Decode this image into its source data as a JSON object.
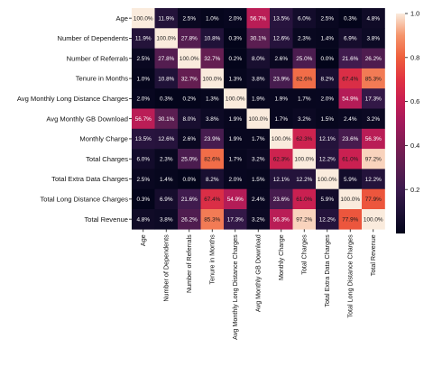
{
  "chart_data": {
    "type": "heatmap",
    "title": "",
    "xlabel": "",
    "ylabel": "",
    "labels": [
      "Age",
      "Number of Dependents",
      "Number of Referrals",
      "Tenure in Months",
      "Avg Monthly Long Distance Charges",
      "Avg Monthly GB Download",
      "Monthly Charge",
      "Total Charges",
      "Total Extra Data Charges",
      "Total Long Distance Charges",
      "Total Revenue"
    ],
    "values": [
      [
        100.0,
        11.9,
        2.5,
        1.0,
        2.0,
        56.7,
        13.5,
        6.0,
        2.5,
        0.3,
        4.8
      ],
      [
        11.9,
        100.0,
        27.8,
        10.8,
        0.3,
        30.1,
        12.6,
        2.3,
        1.4,
        6.9,
        3.8
      ],
      [
        2.5,
        27.8,
        100.0,
        32.7,
        0.2,
        8.0,
        2.6,
        25.0,
        0.0,
        21.6,
        26.2
      ],
      [
        1.0,
        10.8,
        32.7,
        100.0,
        1.3,
        3.8,
        23.9,
        82.6,
        8.2,
        67.4,
        85.3
      ],
      [
        2.0,
        0.3,
        0.2,
        1.3,
        100.0,
        1.9,
        1.9,
        1.7,
        2.0,
        54.9,
        17.3
      ],
      [
        56.7,
        30.1,
        8.0,
        3.8,
        1.9,
        100.0,
        1.7,
        3.2,
        1.5,
        2.4,
        3.2
      ],
      [
        13.5,
        12.6,
        2.6,
        23.9,
        1.9,
        1.7,
        100.0,
        62.3,
        12.1,
        23.6,
        56.3
      ],
      [
        6.0,
        2.3,
        25.0,
        82.6,
        1.7,
        3.2,
        62.3,
        100.0,
        12.2,
        61.0,
        97.2
      ],
      [
        2.5,
        1.4,
        0.0,
        8.2,
        2.0,
        1.5,
        12.1,
        12.2,
        100.0,
        5.9,
        12.2
      ],
      [
        0.3,
        6.9,
        21.6,
        67.4,
        54.9,
        2.4,
        23.6,
        61.0,
        5.9,
        100.0,
        77.9
      ],
      [
        4.8,
        3.8,
        26.2,
        85.3,
        17.3,
        3.2,
        56.3,
        97.2,
        12.2,
        77.9,
        100.0
      ]
    ],
    "value_format": "percent_1dp",
    "colormap": "rocket",
    "colorbar": {
      "min": 0.0,
      "max": 1.0,
      "ticks": [
        "0.2",
        "0.4",
        "0.6",
        "0.8",
        "1.0"
      ]
    },
    "grid": false,
    "legend": "colorbar-right"
  }
}
